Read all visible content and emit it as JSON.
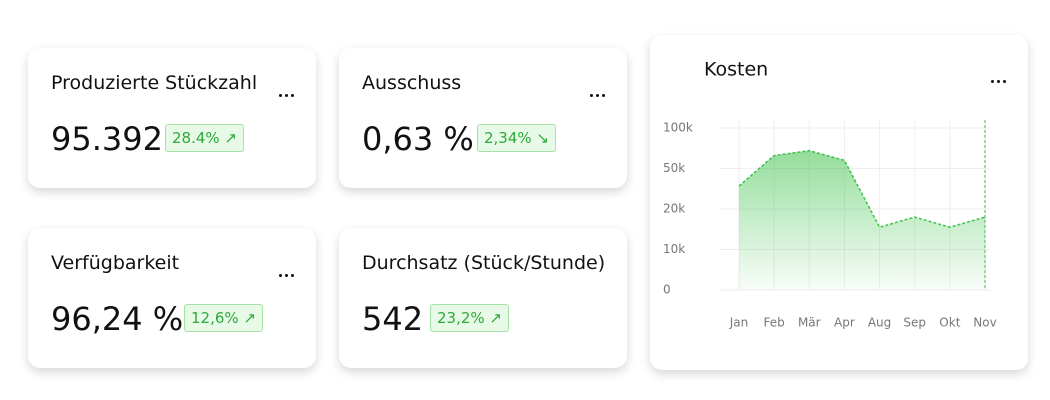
{
  "cards": [
    {
      "title": "Produzierte Stückzahl",
      "value": "95.392",
      "change": "28.4% ↗"
    },
    {
      "title": "Ausschuss",
      "value": "0,63 %",
      "change": "2,34% ↘"
    },
    {
      "title": "Verfügbarkeit",
      "value": "96,24 %",
      "change": "12,6% ↗"
    },
    {
      "title": "Durchsatz (Stück/Stunde)",
      "value": "542",
      "change": "23,2% ↗"
    }
  ],
  "chart_data": {
    "type": "area",
    "title": "Kosten",
    "categories": [
      "Jan",
      "Feb",
      "Mär",
      "Apr",
      "Aug",
      "Sep",
      "Okt",
      "Nov"
    ],
    "values": [
      37000,
      66000,
      72000,
      60000,
      15500,
      18000,
      15500,
      18000
    ],
    "color": "#3cc24a",
    "ylim": [
      0,
      100000
    ],
    "yticks": [
      {
        "value": 0,
        "label": "0"
      },
      {
        "value": 10000,
        "label": "10k"
      },
      {
        "value": 20000,
        "label": "20k"
      },
      {
        "value": 50000,
        "label": "50k"
      },
      {
        "value": 100000,
        "label": "100k"
      }
    ],
    "grid": true
  }
}
